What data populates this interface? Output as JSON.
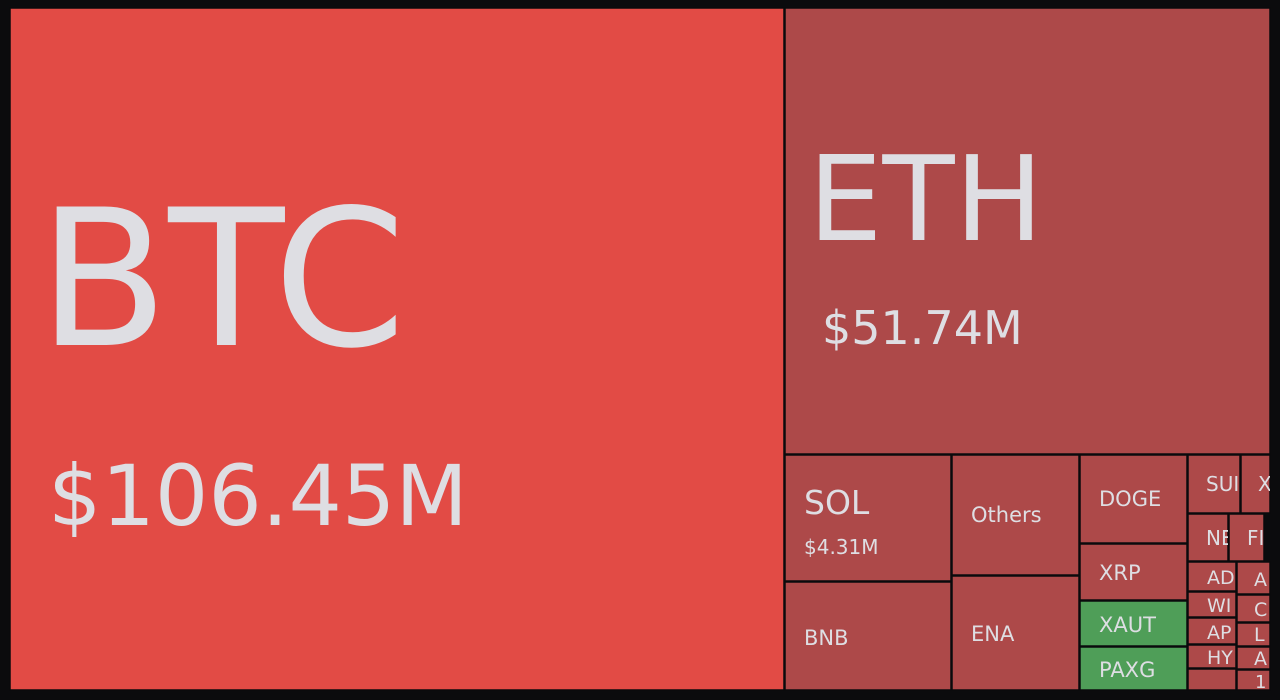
{
  "chart_data": {
    "type": "treemap",
    "title": "",
    "colors": {
      "loss_strong": "#e24b45",
      "loss": "#ad4949",
      "gain": "#4f9e58",
      "border": "#0b0b0d",
      "label": "#dedee3"
    },
    "tiles": [
      {
        "symbol": "BTC",
        "value_label": "$106.45M",
        "value_musd": 106.45,
        "trend": "loss_strong"
      },
      {
        "symbol": "ETH",
        "value_label": "$51.74M",
        "value_musd": 51.74,
        "trend": "loss"
      },
      {
        "symbol": "SOL",
        "value_label": "$4.31M",
        "value_musd": 4.31,
        "trend": "loss"
      },
      {
        "symbol": "Others",
        "value_label": "",
        "trend": "loss"
      },
      {
        "symbol": "DOGE",
        "value_label": "",
        "trend": "loss"
      },
      {
        "symbol": "SUI",
        "value_label": "",
        "trend": "loss"
      },
      {
        "symbol": "X",
        "value_label": "",
        "trend": "loss"
      },
      {
        "symbol": "NE",
        "value_label": "",
        "trend": "loss"
      },
      {
        "symbol": "FI",
        "value_label": "",
        "trend": "loss"
      },
      {
        "symbol": "BNB",
        "value_label": "",
        "trend": "loss"
      },
      {
        "symbol": "ENA",
        "value_label": "",
        "trend": "loss"
      },
      {
        "symbol": "XRP",
        "value_label": "",
        "trend": "loss"
      },
      {
        "symbol": "XAUT",
        "value_label": "",
        "trend": "gain"
      },
      {
        "symbol": "PAXG",
        "value_label": "",
        "trend": "gain"
      },
      {
        "symbol": "AD",
        "value_label": "",
        "trend": "loss"
      },
      {
        "symbol": "WI",
        "value_label": "",
        "trend": "loss"
      },
      {
        "symbol": "AP",
        "value_label": "",
        "trend": "loss"
      },
      {
        "symbol": "HY",
        "value_label": "",
        "trend": "loss"
      },
      {
        "symbol": "A",
        "value_label": "",
        "trend": "loss"
      },
      {
        "symbol": "C",
        "value_label": "",
        "trend": "loss"
      },
      {
        "symbol": "L",
        "value_label": "",
        "trend": "loss"
      },
      {
        "symbol": "A",
        "value_label": "",
        "trend": "loss"
      },
      {
        "symbol": "1",
        "value_label": "",
        "trend": "loss"
      },
      {
        "symbol": "",
        "value_label": "",
        "trend": "loss"
      }
    ]
  }
}
